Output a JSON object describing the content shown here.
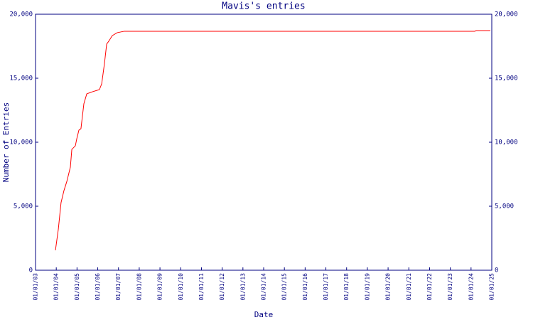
{
  "chart_data": {
    "type": "line",
    "title": "Mavis's entries",
    "x_label": "Date",
    "y_label": "Number of Entries",
    "x": [
      2003.96,
      2004.1,
      2004.23,
      2004.37,
      2004.51,
      2004.68,
      2004.75,
      2004.92,
      2004.99,
      2005.09,
      2005.19,
      2005.33,
      2005.47,
      2005.74,
      2006.08,
      2006.19,
      2006.32,
      2006.43,
      2006.53,
      2006.7,
      2006.94,
      2007.28,
      2024.18,
      2024.25,
      2024.93
    ],
    "series": [
      {
        "name": "entries",
        "color": "#ff0000",
        "values": [
          1560,
          3220,
          5280,
          6220,
          6940,
          8060,
          9440,
          9720,
          10280,
          10940,
          11060,
          13000,
          13780,
          13940,
          14110,
          14560,
          16110,
          17670,
          17890,
          18330,
          18560,
          18670,
          18670,
          18720,
          18720
        ]
      }
    ],
    "xlim": [
      2003,
      2025
    ],
    "xticks": [
      {
        "value": 2003,
        "label": "01/01/03"
      },
      {
        "value": 2004,
        "label": "01/01/04"
      },
      {
        "value": 2005,
        "label": "01/01/05"
      },
      {
        "value": 2006,
        "label": "01/01/06"
      },
      {
        "value": 2007,
        "label": "01/01/07"
      },
      {
        "value": 2008,
        "label": "01/01/08"
      },
      {
        "value": 2009,
        "label": "01/01/09"
      },
      {
        "value": 2010,
        "label": "01/01/10"
      },
      {
        "value": 2011,
        "label": "01/01/11"
      },
      {
        "value": 2012,
        "label": "01/01/12"
      },
      {
        "value": 2013,
        "label": "01/01/13"
      },
      {
        "value": 2014,
        "label": "01/01/14"
      },
      {
        "value": 2015,
        "label": "01/01/15"
      },
      {
        "value": 2016,
        "label": "01/01/16"
      },
      {
        "value": 2017,
        "label": "01/01/17"
      },
      {
        "value": 2018,
        "label": "01/01/18"
      },
      {
        "value": 2019,
        "label": "01/01/19"
      },
      {
        "value": 2020,
        "label": "01/01/20"
      },
      {
        "value": 2021,
        "label": "01/01/21"
      },
      {
        "value": 2022,
        "label": "01/01/22"
      },
      {
        "value": 2023,
        "label": "01/01/23"
      },
      {
        "value": 2024,
        "label": "01/01/24"
      },
      {
        "value": 2025,
        "label": "01/01/25"
      }
    ],
    "ylim": [
      0,
      20000
    ],
    "yticks": [
      0,
      {
        "value": 5000,
        "label": "5,000"
      },
      {
        "value": 10000,
        "label": "10,000"
      },
      {
        "value": 15000,
        "label": "15,000"
      },
      {
        "value": 20000,
        "label": "20,000"
      }
    ],
    "y2lim": [
      0,
      20000
    ],
    "y2ticks": [
      0,
      {
        "value": 5000,
        "label": "5,000"
      },
      {
        "value": 10000,
        "label": "10,000"
      },
      {
        "value": 15000,
        "label": "15,000"
      },
      {
        "value": 20000,
        "label": "20,000"
      }
    ],
    "axis_color": "#000080"
  }
}
